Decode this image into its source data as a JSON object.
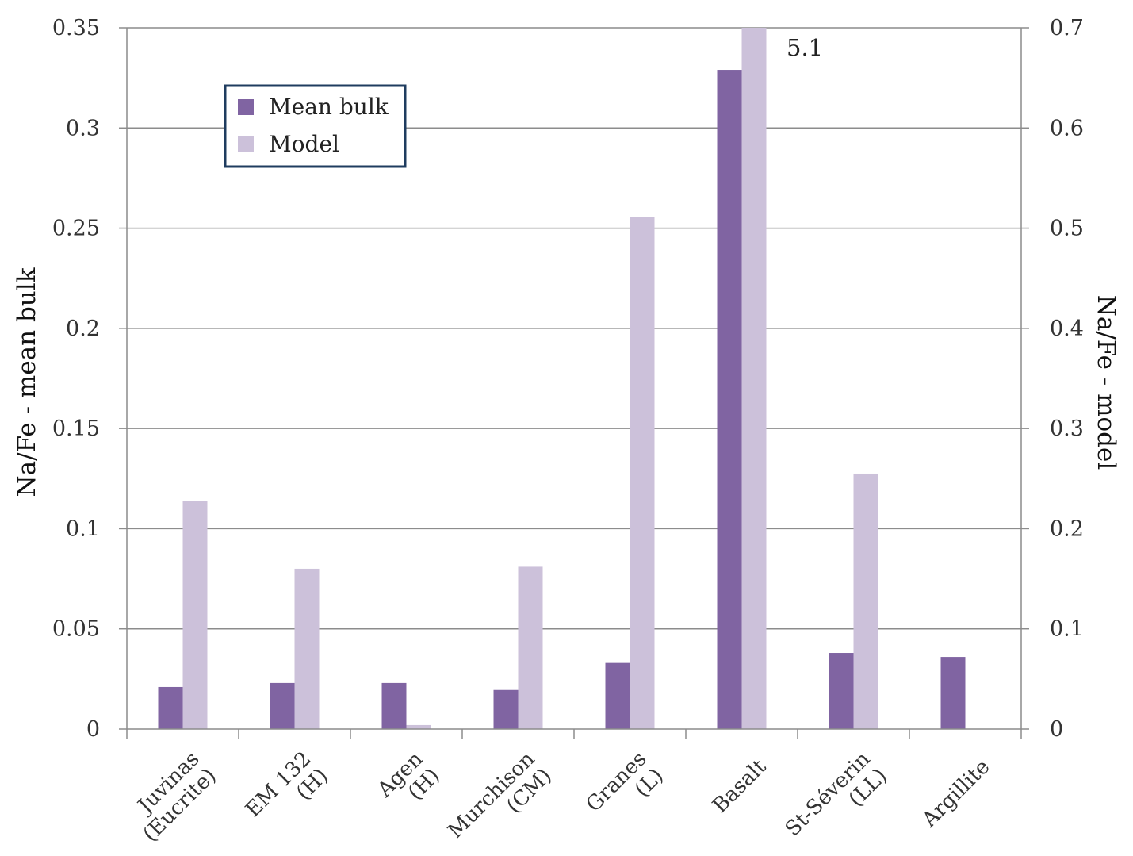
{
  "chart_data": {
    "type": "bar",
    "categories": [
      [
        "Juvinas",
        "(Eucrite)"
      ],
      [
        "EM 132",
        "(H)"
      ],
      [
        "Agen",
        "(H)"
      ],
      [
        "Murchison",
        "(CM)"
      ],
      [
        "Granes",
        "(L)"
      ],
      [
        "Basalt"
      ],
      [
        "St-Séverin",
        "(LL)"
      ],
      [
        "Argillite"
      ]
    ],
    "series": [
      {
        "name": "Mean bulk",
        "axis": "left",
        "color": "#8064a2",
        "values": [
          0.021,
          0.023,
          0.023,
          0.0195,
          0.033,
          0.329,
          0.038,
          0.036
        ]
      },
      {
        "name": "Model",
        "axis": "right",
        "color": "#ccc1da",
        "values": [
          0.228,
          0.16,
          0.004,
          0.162,
          0.511,
          0.7,
          0.255,
          null
        ]
      }
    ],
    "ylabel_left": "Na/Fe - mean bulk",
    "ylabel_right": "Na/Fe - model",
    "ylim_left": [
      0,
      0.35
    ],
    "ylim_right": [
      0,
      0.7
    ],
    "yticks_left": [
      "0",
      "0.05",
      "0.1",
      "0.15",
      "0.2",
      "0.25",
      "0.3",
      "0.35"
    ],
    "yticks_right": [
      "0",
      "0.1",
      "0.2",
      "0.3",
      "0.4",
      "0.5",
      "0.6",
      "0.7"
    ],
    "grid": true,
    "legend_position": "top-left",
    "annotations": [
      {
        "text": "5.1",
        "category_index": 5,
        "series": "Model"
      }
    ]
  }
}
